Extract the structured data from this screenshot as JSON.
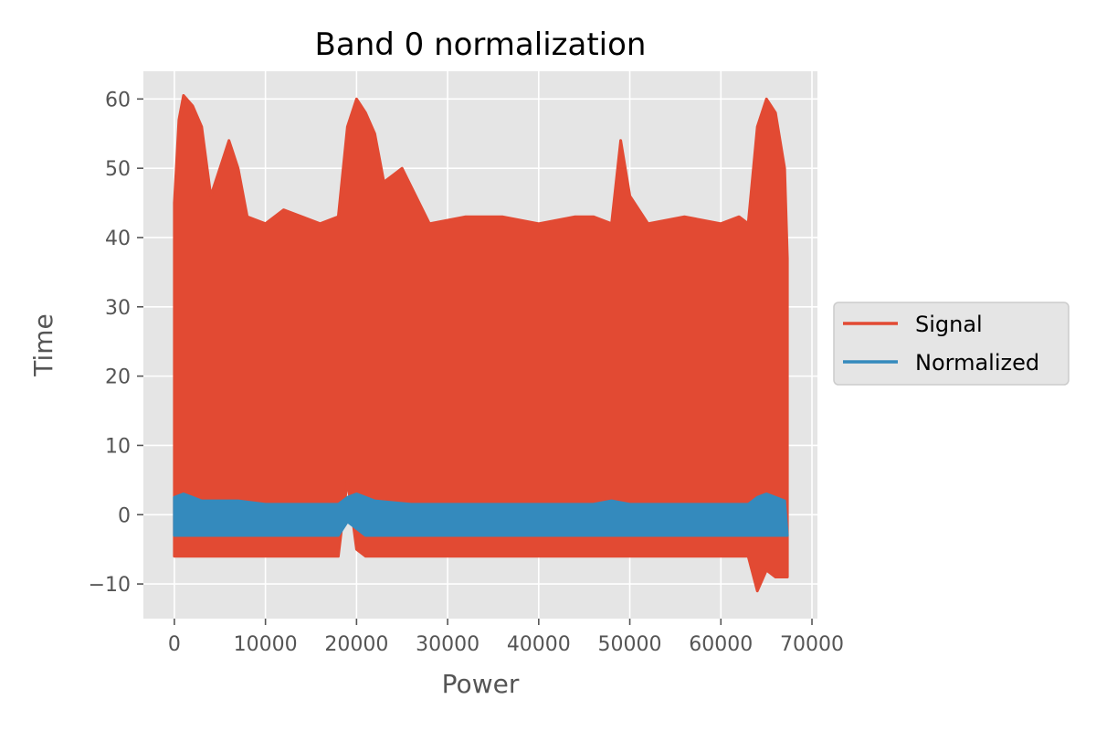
{
  "chart_data": {
    "type": "line",
    "title": "Band 0 normalization",
    "xlabel": "Power",
    "ylabel": "Time",
    "xlim": [
      -3400,
      70600
    ],
    "ylim": [
      -15,
      64
    ],
    "x_ticks": [
      0,
      10000,
      20000,
      30000,
      40000,
      50000,
      60000,
      70000
    ],
    "x_tick_labels": [
      "0",
      "10000",
      "20000",
      "30000",
      "40000",
      "50000",
      "60000",
      "70000"
    ],
    "y_ticks": [
      -10,
      0,
      10,
      20,
      30,
      40,
      50,
      60
    ],
    "y_tick_labels": [
      "−10",
      "0",
      "10",
      "20",
      "30",
      "40",
      "50",
      "60"
    ],
    "grid": true,
    "legend_position": "outside-right",
    "series": [
      {
        "name": "Signal",
        "color": "#E24A33",
        "envelope": {
          "x": [
            0,
            500,
            1000,
            2000,
            3000,
            4000,
            5000,
            6000,
            7000,
            8000,
            10000,
            12000,
            14000,
            16000,
            18000,
            19000,
            20000,
            21000,
            22000,
            23000,
            25000,
            28000,
            32000,
            36000,
            40000,
            44000,
            46000,
            48000,
            49000,
            50000,
            52000,
            56000,
            60000,
            62000,
            63000,
            64000,
            65000,
            66000,
            67000,
            67300
          ],
          "upper": [
            45,
            57,
            60.5,
            59,
            56,
            46,
            50,
            54,
            50,
            43,
            42,
            44,
            43,
            42,
            43,
            56,
            60,
            58,
            55,
            48,
            50,
            42,
            43,
            43,
            42,
            43,
            43,
            42,
            54,
            46,
            42,
            43,
            42,
            43,
            42,
            56,
            60,
            58,
            50,
            37
          ],
          "lower": [
            -6,
            -6,
            -6,
            -6,
            -6,
            -6,
            -6,
            -6,
            -6,
            -6,
            -6,
            -6,
            -6,
            -6,
            -6,
            5,
            -5,
            -6,
            -6,
            -6,
            -6,
            -6,
            -6,
            -6,
            -6,
            -6,
            -6,
            -6,
            -6,
            -6,
            -6,
            -6,
            -6,
            -6,
            -6,
            -11,
            -8,
            -9,
            -9,
            -9
          ]
        }
      },
      {
        "name": "Normalized",
        "color": "#348ABD",
        "envelope": {
          "x": [
            0,
            1000,
            2000,
            3000,
            5000,
            7000,
            10000,
            14000,
            18000,
            19000,
            20000,
            21000,
            22000,
            26000,
            30000,
            36000,
            40000,
            46000,
            48000,
            50000,
            54000,
            58000,
            62000,
            63000,
            64000,
            65000,
            66000,
            67000,
            67300
          ],
          "upper": [
            2.5,
            3,
            2.5,
            2,
            2,
            2,
            1.5,
            1.5,
            1.5,
            2.5,
            3,
            2.5,
            2,
            1.5,
            1.5,
            1.5,
            1.5,
            1.5,
            2,
            1.5,
            1.5,
            1.5,
            1.5,
            1.5,
            2.5,
            3,
            2.5,
            2,
            -3
          ],
          "lower": [
            -3,
            -3,
            -3,
            -3,
            -3,
            -3,
            -3,
            -3,
            -3,
            -1,
            -2,
            -3,
            -3,
            -3,
            -3,
            -3,
            -3,
            -3,
            -3,
            -3,
            -3,
            -3,
            -3,
            -3,
            -3,
            -3,
            -3,
            -3,
            -3
          ]
        }
      }
    ]
  }
}
